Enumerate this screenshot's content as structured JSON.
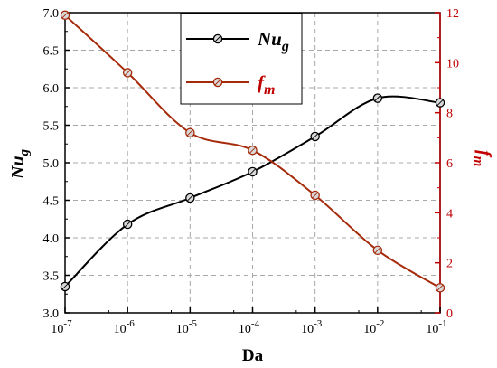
{
  "chart_data": {
    "type": "line",
    "x_label": "Da",
    "x_ticks": [
      {
        "base": "10",
        "exp": "-7"
      },
      {
        "base": "10",
        "exp": "-6"
      },
      {
        "base": "10",
        "exp": "-5"
      },
      {
        "base": "10",
        "exp": "-4"
      },
      {
        "base": "10",
        "exp": "-3"
      },
      {
        "base": "10",
        "exp": "-2"
      },
      {
        "base": "10",
        "exp": "-1"
      }
    ],
    "x": [
      1e-07,
      1e-06,
      1e-05,
      0.0001,
      0.001,
      0.01,
      0.1
    ],
    "x_scale": "log",
    "xlim": [
      1e-07,
      0.1
    ],
    "left_axis": {
      "label_main": "Nu",
      "label_sub": "g",
      "ylim": [
        3.0,
        7.0
      ],
      "ticks": [
        "3.0",
        "3.5",
        "4.0",
        "4.5",
        "5.0",
        "5.5",
        "6.0",
        "6.5",
        "7.0"
      ],
      "color": "#000000"
    },
    "right_axis": {
      "label_main": "f",
      "label_sub": "m",
      "ylim": [
        0,
        12
      ],
      "ticks": [
        "0",
        "2",
        "4",
        "6",
        "8",
        "10",
        "12"
      ],
      "color": "#c00000"
    },
    "series": [
      {
        "name_main": "Nu",
        "name_sub": "g",
        "axis": "left",
        "color": "#000000",
        "values": [
          3.35,
          4.18,
          4.53,
          4.88,
          5.35,
          5.86,
          5.8
        ]
      },
      {
        "name_main": "f",
        "name_sub": "m",
        "axis": "right",
        "color": "#a52a0a",
        "values": [
          11.9,
          9.6,
          7.2,
          6.5,
          4.7,
          2.5,
          1.0
        ]
      }
    ],
    "grid": true,
    "legend_position": "top-center"
  }
}
